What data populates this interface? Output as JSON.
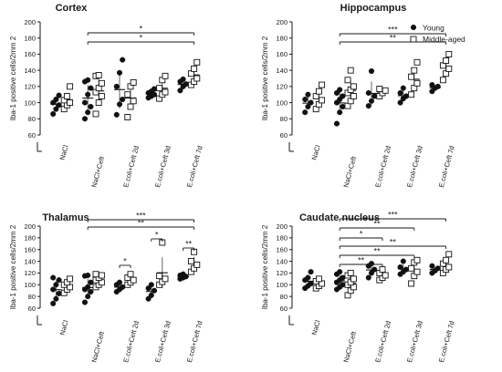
{
  "legend": {
    "position": "top-right",
    "entries": [
      {
        "name": "Young",
        "marker": "filled-circle"
      },
      {
        "name": "Middle-aged",
        "marker": "open-square"
      }
    ]
  },
  "colors": {
    "ink": "#111111",
    "background": "#ffffff"
  },
  "chart_data": [
    {
      "type": "scatter",
      "title": "Cortex",
      "ylabel": "Iba-1 positive cells/2mm 2",
      "ylim": [
        60,
        200
      ],
      "yticks": [
        60,
        80,
        100,
        120,
        140,
        160,
        180,
        200
      ],
      "categories": [
        "NaCl",
        "NaCl+Ceft",
        "E.coli+Ceft 2d",
        "E.coli+Ceft 3d",
        "E.coli+Ceft 7d"
      ],
      "grid": false,
      "series": [
        {
          "name": "Young",
          "groups": [
            [
              86,
              92,
              97,
              100,
              104,
              109
            ],
            [
              80,
              88,
              95,
              100,
              110,
              118,
              126,
              128
            ],
            [
              85,
              98,
              104,
              120,
              137,
              153
            ],
            [
              106,
              108,
              110,
              112,
              114,
              117
            ],
            [
              115,
              120,
              123,
              126,
              129
            ]
          ]
        },
        {
          "name": "Middle-aged",
          "groups": [
            [
              92,
              97,
              100,
              103,
              108,
              120
            ],
            [
              86,
              100,
              108,
              113,
              118,
              124,
              133,
              134
            ],
            [
              82,
              95,
              102,
              110,
              120,
              125
            ],
            [
              105,
              110,
              113,
              118,
              128,
              133
            ],
            [
              122,
              126,
              130,
              136,
              142,
              150
            ]
          ]
        }
      ],
      "significance": [
        {
          "from": "NaCl+Ceft",
          "to": "E.coli+Ceft 7d",
          "label": "*"
        },
        {
          "from": "NaCl+Ceft",
          "to": "E.coli+Ceft 7d",
          "label": "*"
        }
      ]
    },
    {
      "type": "scatter",
      "title": "Hippocampus",
      "ylabel": "Iba-1 positive cells/2mm 2",
      "ylim": [
        60,
        200
      ],
      "yticks": [
        60,
        80,
        100,
        120,
        140,
        160,
        180,
        200
      ],
      "categories": [
        "NaCl",
        "NaCl+Ceft",
        "E.coli+Ceft 2d",
        "E.coli+Ceft 3d",
        "E.coli+Ceft 7d"
      ],
      "grid": false,
      "series": [
        {
          "name": "Young",
          "groups": [
            [
              88,
              95,
              100,
              104,
              110
            ],
            [
              74,
              88,
              95,
              100,
              104,
              108,
              112,
              116
            ],
            [
              96,
              102,
              108,
              112,
              139
            ],
            [
              100,
              105,
              108,
              112,
              118
            ],
            [
              114,
              118,
              120,
              122
            ]
          ]
        },
        {
          "name": "Middle-aged",
          "groups": [
            [
              92,
              98,
              103,
              108,
              114,
              122
            ],
            [
              96,
              102,
              108,
              112,
              116,
              120,
              128,
              140
            ],
            [
              108,
              112,
              115,
              117
            ],
            [
              110,
              118,
              124,
              132,
              140,
              150
            ],
            [
              128,
              136,
              142,
              146,
              152,
              160
            ]
          ]
        }
      ],
      "significance": [
        {
          "from": "NaCl+Ceft",
          "to": "E.coli+Ceft 7d",
          "label": "***"
        },
        {
          "from": "NaCl+Ceft",
          "to": "E.coli+Ceft 7d",
          "label": "**"
        }
      ]
    },
    {
      "type": "scatter",
      "title": "Thalamus",
      "ylabel": "Iba-1 positive cells/2mm 2",
      "ylim": [
        60,
        200
      ],
      "yticks": [
        60,
        80,
        100,
        120,
        140,
        160,
        180,
        200
      ],
      "categories": [
        "NaCl",
        "NaCl+Ceft",
        "E.coli+Ceft 2d",
        "E.coli+Ceft 3d",
        "E.coli+Ceft 7d"
      ],
      "grid": false,
      "series": [
        {
          "name": "Young",
          "groups": [
            [
              68,
              76,
              85,
              92,
              100,
              108,
              112
            ],
            [
              70,
              80,
              88,
              92,
              96,
              104,
              115,
              116
            ],
            [
              88,
              92,
              96,
              100,
              104
            ],
            [
              76,
              82,
              90,
              94,
              100
            ],
            [
              110,
              112,
              114,
              116,
              118
            ]
          ]
        },
        {
          "name": "Middle-aged",
          "groups": [
            [
              86,
              92,
              96,
              100,
              104,
              110
            ],
            [
              96,
              100,
              104,
              108,
              112,
              116,
              118
            ],
            [
              100,
              104,
              108,
              112,
              118
            ],
            [
              100,
              105,
              110,
              115,
              172
            ],
            [
              122,
              128,
              134,
              140,
              156
            ]
          ]
        }
      ],
      "significance": [
        {
          "from": "NaCl+Ceft",
          "to": "E.coli+Ceft 7d",
          "label": "***"
        },
        {
          "from": "NaCl+Ceft",
          "to": "E.coli+Ceft 7d",
          "label": "**"
        },
        {
          "from": "E.coli+Ceft 2d",
          "to": "E.coli+Ceft 2d",
          "label": "*"
        },
        {
          "from": "E.coli+Ceft 3d",
          "to": "E.coli+Ceft 3d",
          "label": "*"
        },
        {
          "from": "E.coli+Ceft 7d",
          "to": "E.coli+Ceft 7d",
          "label": "**"
        }
      ]
    },
    {
      "type": "scatter",
      "title": "Caudate nucleus",
      "ylabel": "Iba-1 positive cells/2mm 2",
      "ylim": [
        60,
        200
      ],
      "yticks": [
        60,
        80,
        100,
        120,
        140,
        160,
        180,
        200
      ],
      "categories": [
        "NaCl",
        "NaCl+Ceft",
        "E.coli+Ceft 2d",
        "E.coli+Ceft 3d",
        "E.coli+Ceft 7d"
      ],
      "grid": false,
      "series": [
        {
          "name": "Young",
          "groups": [
            [
              94,
              98,
              102,
              108,
              112,
              122
            ],
            [
              92,
              96,
              100,
              104,
              108,
              112,
              118,
              122
            ],
            [
              112,
              120,
              126,
              132,
              136
            ],
            [
              118,
              122,
              126,
              130,
              140
            ],
            [
              120,
              124,
              128,
              132
            ]
          ]
        },
        {
          "name": "Middle-aged",
          "groups": [
            [
              94,
              98,
              102,
              106,
              110
            ],
            [
              82,
              90,
              96,
              100,
              104,
              110,
              116,
              120
            ],
            [
              108,
              112,
              116,
              120,
              126
            ],
            [
              102,
              115,
              122,
              128,
              138,
              142
            ],
            [
              120,
              126,
              130,
              136,
              142,
              152
            ]
          ]
        }
      ],
      "significance": [
        {
          "from": "NaCl+Ceft",
          "to": "E.coli+Ceft 7d",
          "label": "***"
        },
        {
          "from": "NaCl+Ceft",
          "to": "E.coli+Ceft 3d",
          "label": "**"
        },
        {
          "from": "NaCl+Ceft",
          "to": "E.coli+Ceft 2d",
          "label": "*"
        },
        {
          "from": "NaCl+Ceft",
          "to": "E.coli+Ceft 7d",
          "label": "**"
        },
        {
          "from": "NaCl+Ceft",
          "to": "E.coli+Ceft 3d",
          "label": "**"
        },
        {
          "from": "NaCl+Ceft",
          "to": "E.coli+Ceft 2d",
          "label": "**"
        }
      ]
    }
  ]
}
